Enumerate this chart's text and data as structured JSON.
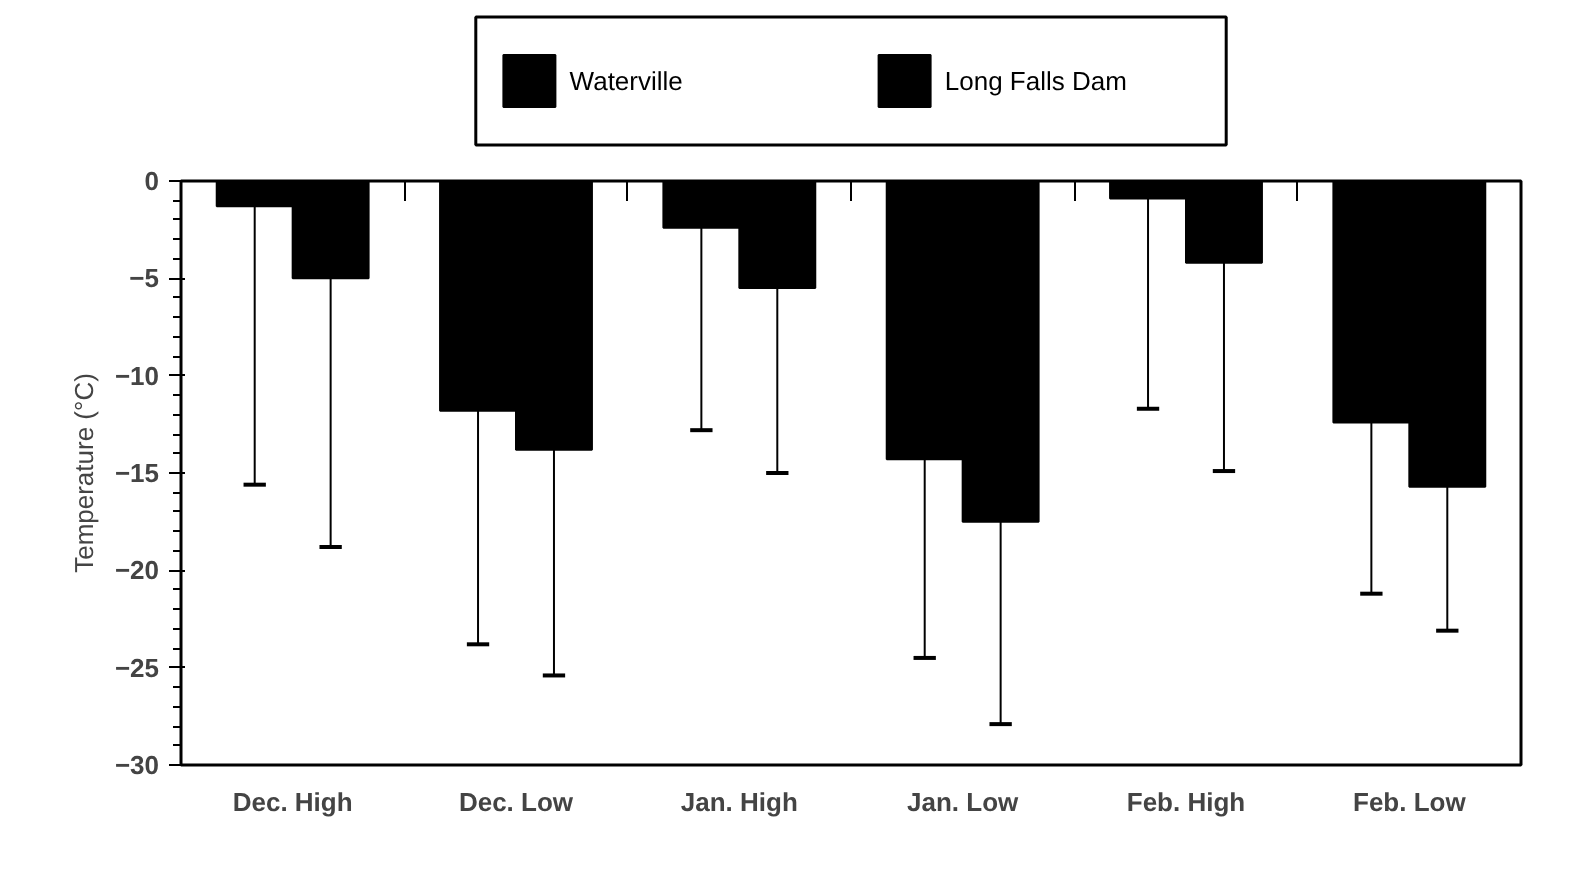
{
  "chart_data": {
    "type": "bar",
    "ylabel": "Temperature (°C)",
    "categories": [
      "Dec. High",
      "Dec. Low",
      "Jan. High",
      "Jan. Low",
      "Feb. High",
      "Feb. Low"
    ],
    "series": [
      {
        "name": "Waterville",
        "color": "#000000",
        "values": [
          -1.3,
          -11.8,
          -2.4,
          -14.3,
          -0.9,
          -12.4
        ],
        "errors": [
          [
            -15.6,
            -1.3
          ],
          [
            -23.8,
            -11.8
          ],
          [
            -12.8,
            -2.4
          ],
          [
            -24.5,
            -14.3
          ],
          [
            -11.7,
            -0.9
          ],
          [
            -21.2,
            -12.4
          ]
        ]
      },
      {
        "name": "Long Falls Dam",
        "color": "#000000",
        "values": [
          -5.0,
          -13.8,
          -5.5,
          -17.5,
          -4.2,
          -15.7
        ],
        "errors": [
          [
            -18.8,
            -5.0
          ],
          [
            -25.4,
            -13.8
          ],
          [
            -15.0,
            -5.5
          ],
          [
            -27.9,
            -17.5
          ],
          [
            -14.9,
            -4.2
          ],
          [
            -23.1,
            -15.7
          ]
        ]
      }
    ],
    "ylim": [
      -30,
      0
    ],
    "yticks": [
      0,
      -5,
      -10,
      -15,
      -20,
      -25,
      -30
    ],
    "grid": false,
    "legend": "top"
  }
}
